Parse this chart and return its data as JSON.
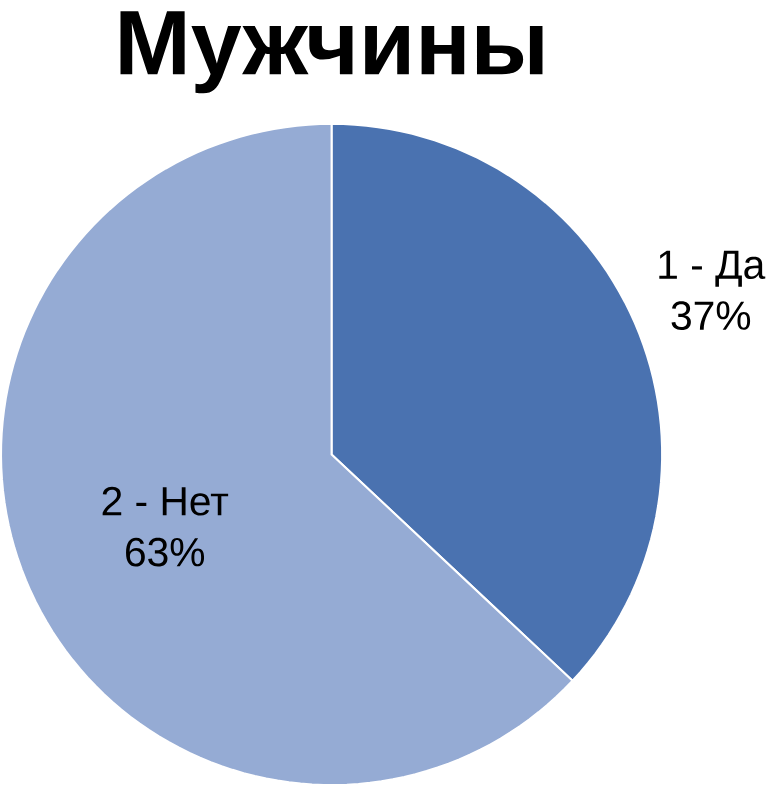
{
  "chart_data": {
    "type": "pie",
    "title": "Мужчины",
    "categories": [
      "1 - Да",
      "2 - Нет"
    ],
    "values": [
      37,
      63
    ],
    "value_labels": [
      "37%",
      "63%"
    ],
    "colors": [
      "#4a72b0",
      "#95abd4"
    ]
  }
}
